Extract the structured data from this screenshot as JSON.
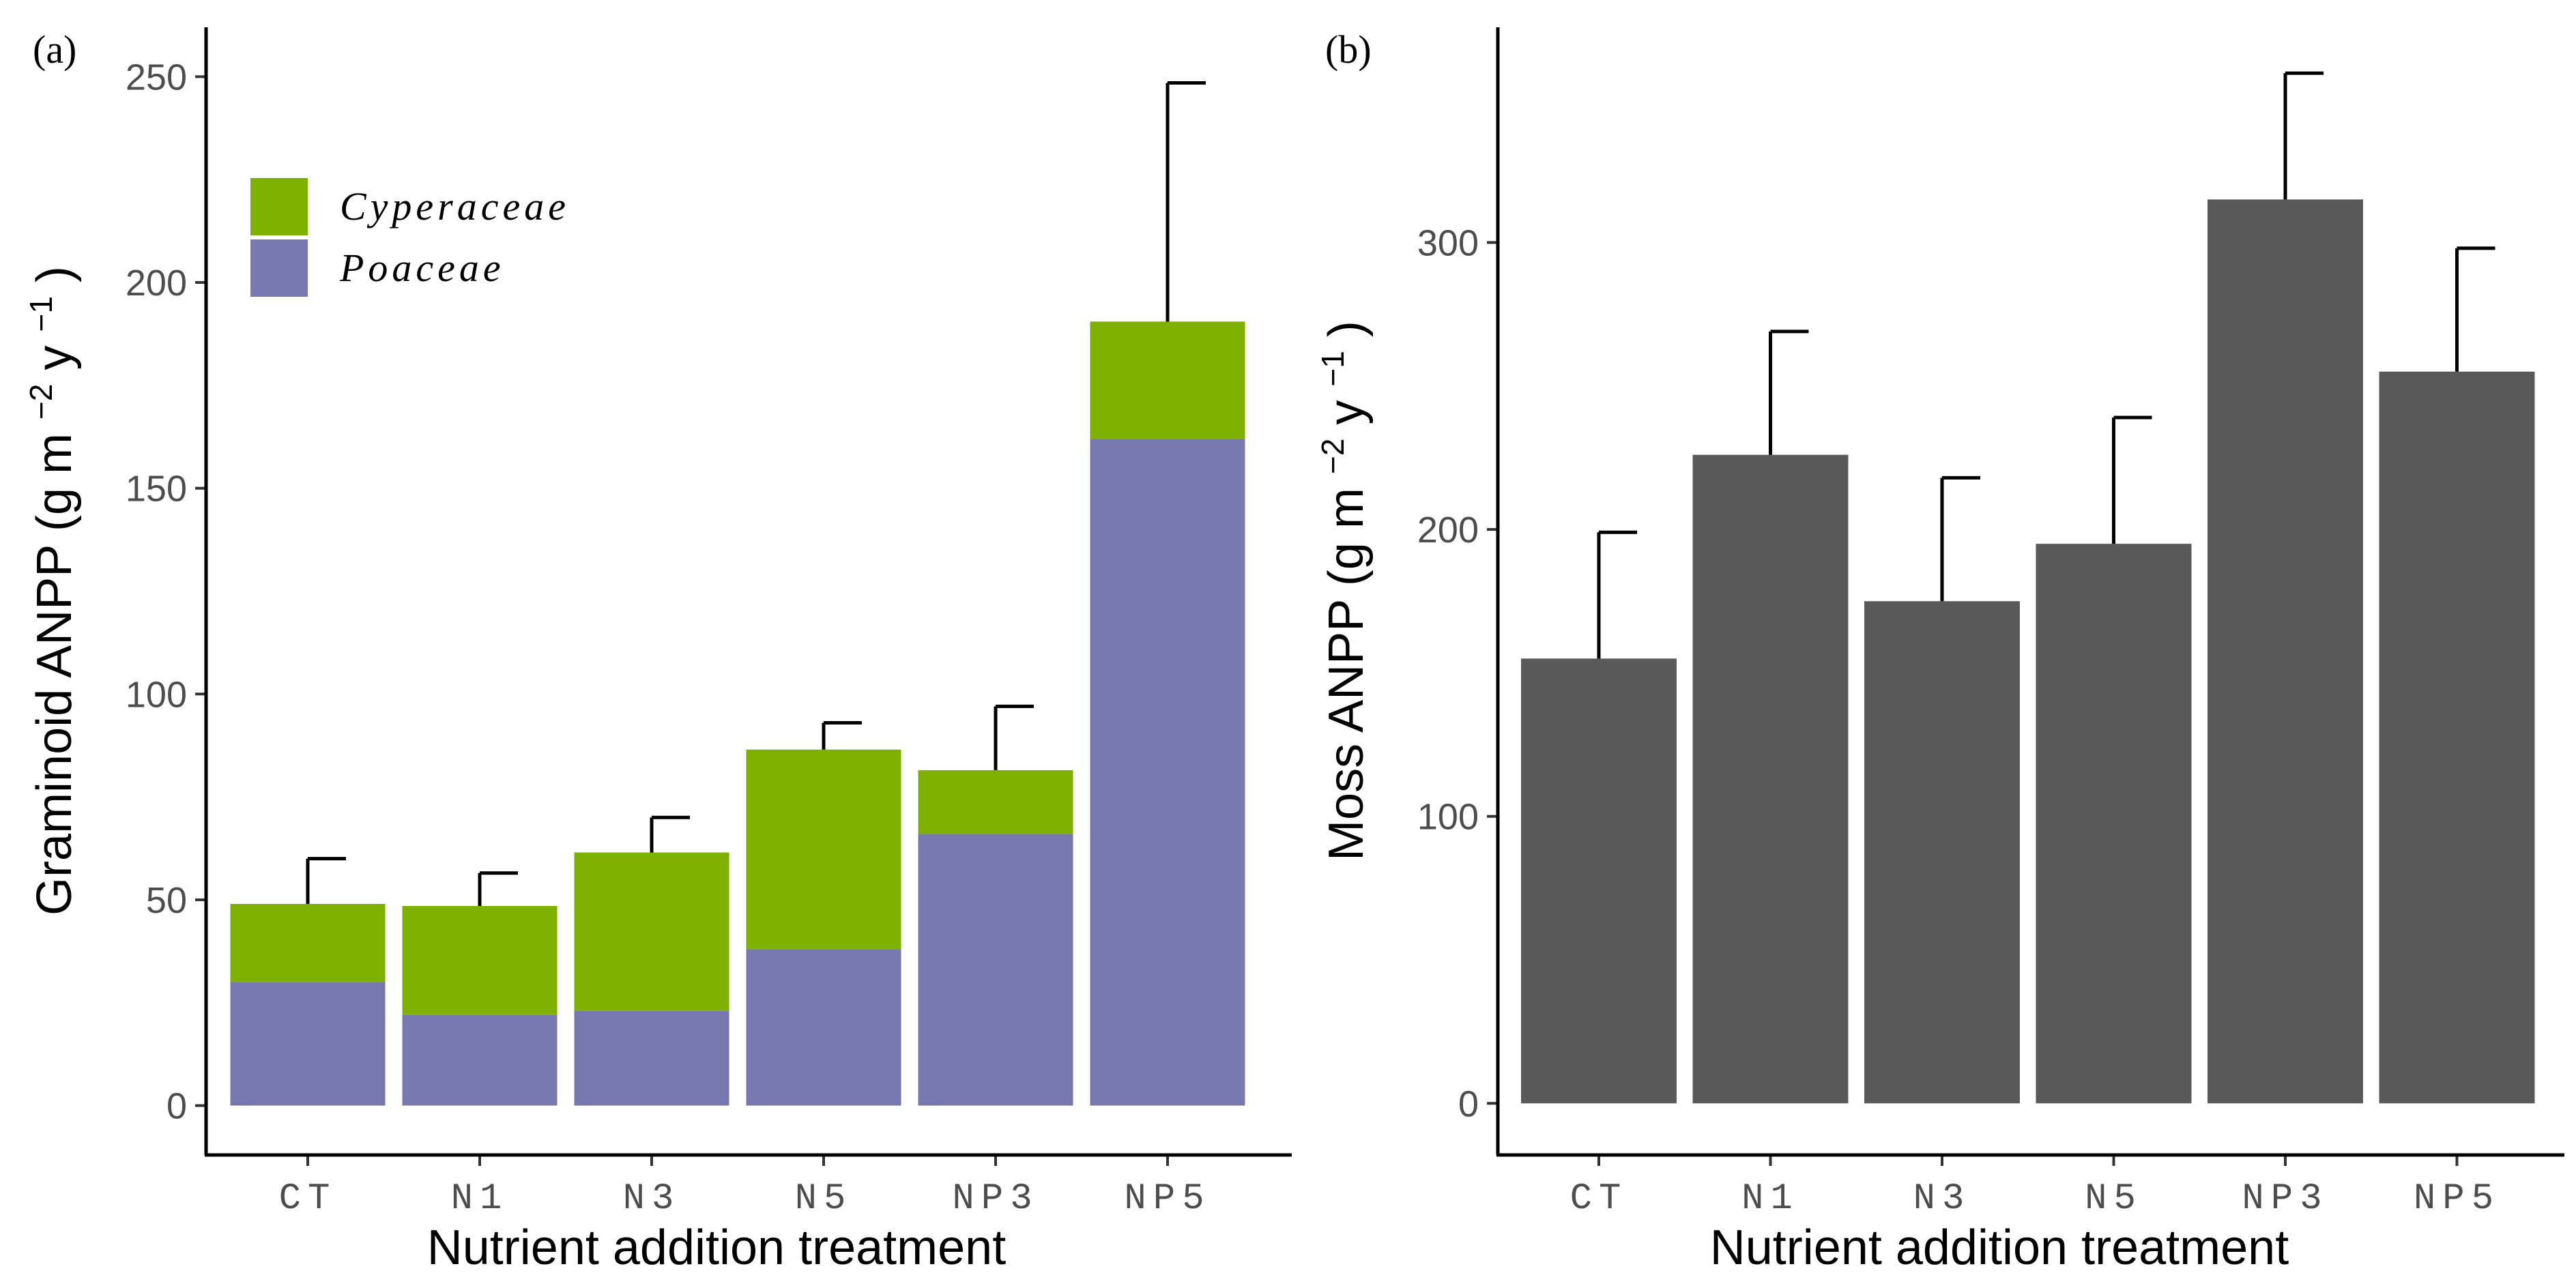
{
  "chart_data": [
    {
      "panel_label": "(a)",
      "type": "bar",
      "stacked": true,
      "categories": [
        "CT",
        "N1",
        "N3",
        "N5",
        "NP3",
        "NP5"
      ],
      "series": [
        {
          "name": "Poaceae",
          "color": "#7878b0",
          "values": [
            30,
            22,
            23,
            38,
            66,
            162
          ]
        },
        {
          "name": "Cyperaceae",
          "color": "#7eb000",
          "values": [
            19,
            26.5,
            38.5,
            48.5,
            15.5,
            28.5
          ]
        }
      ],
      "error_upper": [
        60,
        56.5,
        70,
        93,
        97,
        248.5
      ],
      "ylim": [
        -12,
        262
      ],
      "yticks": [
        0,
        50,
        100,
        150,
        200,
        250
      ],
      "xlabel": "Nutrient addition treatment",
      "ylabel_main": "Graminoid ANPP (g m",
      "ylabel_sup1": "−2",
      "ylabel_mid": " y",
      "ylabel_sup2": "−1",
      "ylabel_end": ")",
      "legend": {
        "position": "top-left",
        "entries": [
          "Cyperaceae",
          "Poaceae"
        ]
      }
    },
    {
      "panel_label": "(b)",
      "type": "bar",
      "stacked": false,
      "categories": [
        "CT",
        "N1",
        "N3",
        "N5",
        "NP3",
        "NP5"
      ],
      "series": [
        {
          "name": "Moss",
          "color": "#595959",
          "values": [
            155,
            226,
            175,
            195,
            315,
            255
          ]
        }
      ],
      "error_upper": [
        199,
        269,
        218,
        239,
        359,
        298
      ],
      "ylim": [
        -18,
        375
      ],
      "yticks": [
        0,
        100,
        200,
        300
      ],
      "xlabel": "Nutrient addition treatment",
      "ylabel_main": "Moss ANPP (g m",
      "ylabel_sup1": "−2",
      "ylabel_mid": " y",
      "ylabel_sup2": "−1",
      "ylabel_end": ")"
    }
  ]
}
